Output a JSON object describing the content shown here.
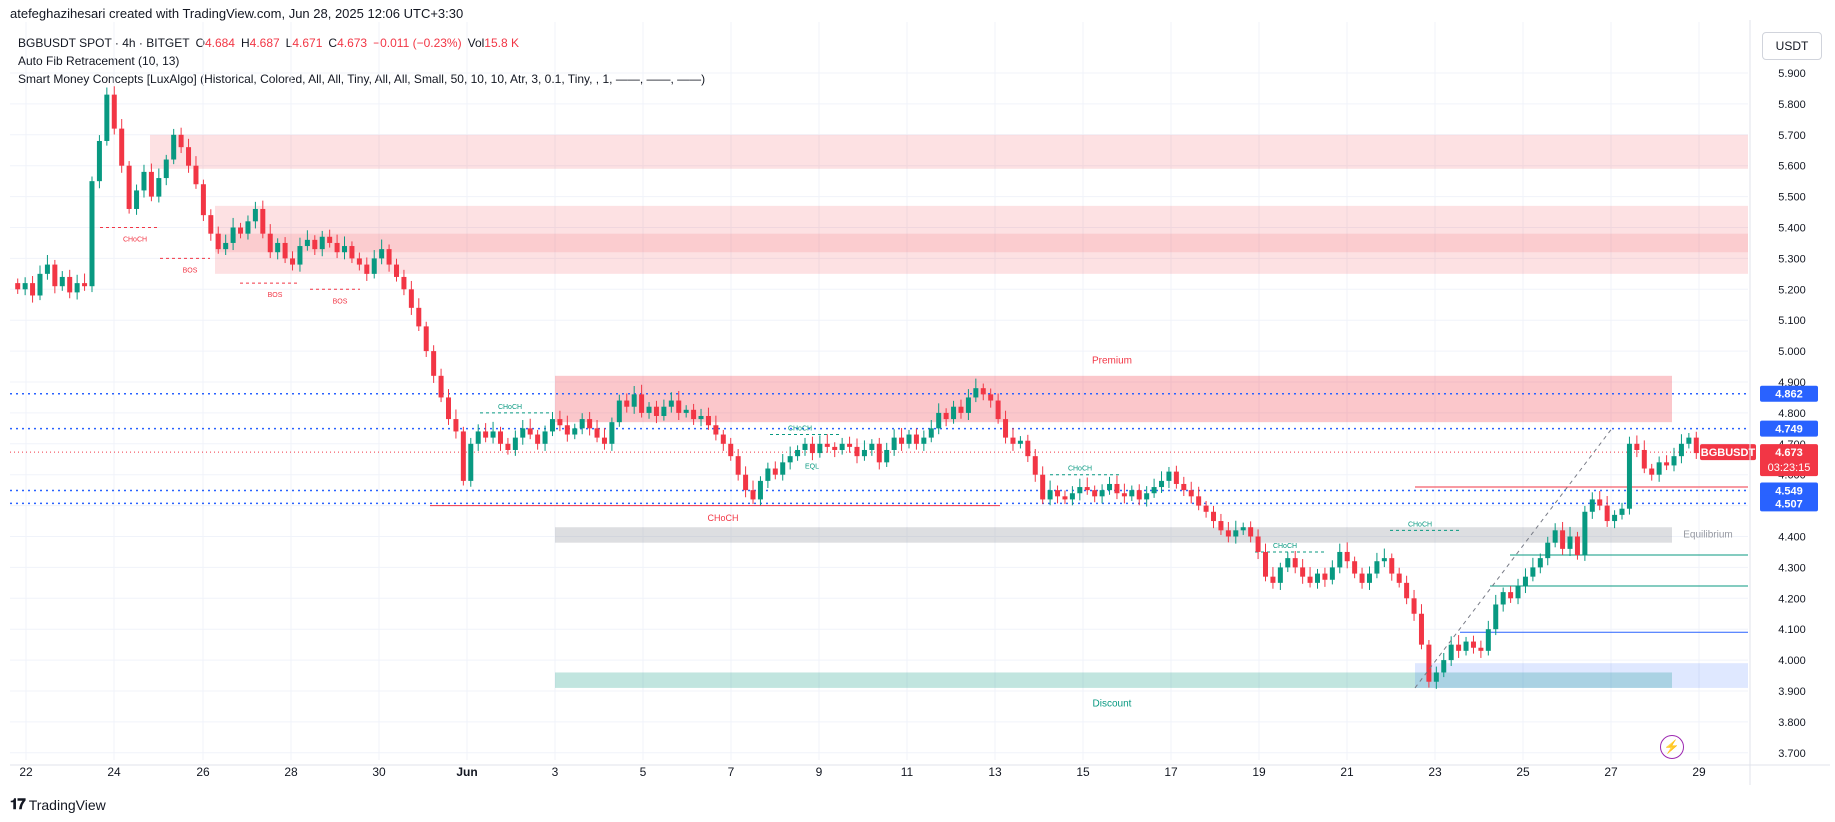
{
  "header": {
    "credit": "atefeghazihesari created with TradingView.com, Jun 28, 2025 12:06 UTC+3:30"
  },
  "legend": {
    "symbol": "BGBUSDT SPOT · 4h · BITGET",
    "o_label": "O",
    "o_value": "4.684",
    "h_label": "H",
    "h_value": "4.687",
    "l_label": "L",
    "l_value": "4.671",
    "c_label": "C",
    "c_value": "4.673",
    "change": "−0.011 (−0.23%)",
    "vol_label": "Vol",
    "vol_value": "15.8 K",
    "indicator1": "Auto Fib Retracement (10, 13)",
    "indicator2": "Smart Money Concepts [LuxAlgo] (Historical, Colored, All, All, Tiny, All, All, Small, 50, 10, 10, Atr, 3, 0.1, Tiny, , 1, ——, ——, ——)"
  },
  "currency_button": "USDT",
  "branding": "TradingView",
  "colors": {
    "up": "#089981",
    "down": "#f23645",
    "fib": "#2962ff",
    "premium_zone": "#f23645",
    "discount_zone": "#089981",
    "equilibrium_zone": "#787b86"
  },
  "chart_data": {
    "type": "candlestick",
    "symbol": "BGBUSDT",
    "timeframe": "4h",
    "ylim": [
      3.7,
      5.95
    ],
    "y_ticks": [
      "5.900",
      "5.800",
      "5.700",
      "5.600",
      "5.500",
      "5.400",
      "5.300",
      "5.200",
      "5.100",
      "5.000",
      "4.900",
      "4.800",
      "4.700",
      "4.600",
      "4.500",
      "4.400",
      "4.300",
      "4.200",
      "4.100",
      "4.000",
      "3.900",
      "3.800",
      "3.700"
    ],
    "x_ticks": [
      "22",
      "24",
      "26",
      "28",
      "30",
      "Jun",
      "3",
      "5",
      "7",
      "9",
      "11",
      "13",
      "15",
      "17",
      "19",
      "21",
      "23",
      "25",
      "27",
      "29"
    ],
    "fib_levels": [
      {
        "price": 4.862,
        "label": "4.862"
      },
      {
        "price": 4.749,
        "label": "4.749"
      },
      {
        "price": 4.549,
        "label": "4.549"
      },
      {
        "price": 4.507,
        "label": "4.507"
      }
    ],
    "last_price": {
      "symbol": "BGBUSDT",
      "price": "4.673",
      "countdown": "03:23:15"
    },
    "zone_labels": {
      "premium": "Premium",
      "equilibrium": "Equilibrium",
      "discount": "Discount"
    },
    "structure_labels": {
      "choch": "CHoCH",
      "bos": "BOS",
      "eql": "EQL"
    },
    "close_path": [
      5.2,
      5.22,
      5.18,
      5.25,
      5.28,
      5.21,
      5.24,
      5.19,
      5.22,
      5.21,
      5.55,
      5.68,
      5.83,
      5.72,
      5.6,
      5.46,
      5.52,
      5.58,
      5.5,
      5.56,
      5.62,
      5.7,
      5.66,
      5.6,
      5.54,
      5.44,
      5.38,
      5.33,
      5.35,
      5.4,
      5.38,
      5.42,
      5.46,
      5.38,
      5.32,
      5.35,
      5.3,
      5.28,
      5.34,
      5.36,
      5.33,
      5.37,
      5.35,
      5.32,
      5.34,
      5.3,
      5.28,
      5.25,
      5.3,
      5.33,
      5.28,
      5.24,
      5.2,
      5.14,
      5.08,
      5.0,
      4.92,
      4.85,
      4.78,
      4.74,
      4.58,
      4.7,
      4.74,
      4.72,
      4.74,
      4.7,
      4.68,
      4.72,
      4.75,
      4.73,
      4.7,
      4.74,
      4.78,
      4.76,
      4.73,
      4.75,
      4.78,
      4.75,
      4.72,
      4.7,
      4.77,
      4.84,
      4.82,
      4.86,
      4.8,
      4.82,
      4.79,
      4.82,
      4.84,
      4.8,
      4.81,
      4.78,
      4.79,
      4.76,
      4.73,
      4.7,
      4.66,
      4.6,
      4.55,
      4.52,
      4.58,
      4.62,
      4.6,
      4.64,
      4.66,
      4.68,
      4.7,
      4.67,
      4.7,
      4.69,
      4.68,
      4.7,
      4.69,
      4.66,
      4.68,
      4.7,
      4.64,
      4.68,
      4.72,
      4.7,
      4.73,
      4.7,
      4.72,
      4.75,
      4.8,
      4.78,
      4.82,
      4.8,
      4.85,
      4.88,
      4.86,
      4.84,
      4.78,
      4.72,
      4.7,
      4.71,
      4.66,
      4.6,
      4.52,
      4.55,
      4.53,
      4.52,
      4.54,
      4.56,
      4.55,
      4.53,
      4.55,
      4.57,
      4.54,
      4.53,
      4.55,
      4.52,
      4.54,
      4.56,
      4.58,
      4.61,
      4.57,
      4.55,
      4.53,
      4.5,
      4.48,
      4.45,
      4.42,
      4.4,
      4.42,
      4.43,
      4.4,
      4.35,
      4.27,
      4.25,
      4.3,
      4.33,
      4.3,
      4.27,
      4.25,
      4.28,
      4.26,
      4.3,
      4.35,
      4.32,
      4.28,
      4.25,
      4.28,
      4.32,
      4.33,
      4.28,
      4.25,
      4.2,
      4.15,
      4.05,
      3.93,
      3.96,
      4.0,
      4.05,
      4.03,
      4.06,
      4.04,
      4.03,
      4.1,
      4.18,
      4.22,
      4.2,
      4.24,
      4.27,
      4.3,
      4.33,
      4.38,
      4.42,
      4.36,
      4.4,
      4.34,
      4.48,
      4.52,
      4.5,
      4.45,
      4.47,
      4.49,
      4.7,
      4.68,
      4.62,
      4.6,
      4.64,
      4.63,
      4.66,
      4.7,
      4.72,
      4.67
    ]
  }
}
